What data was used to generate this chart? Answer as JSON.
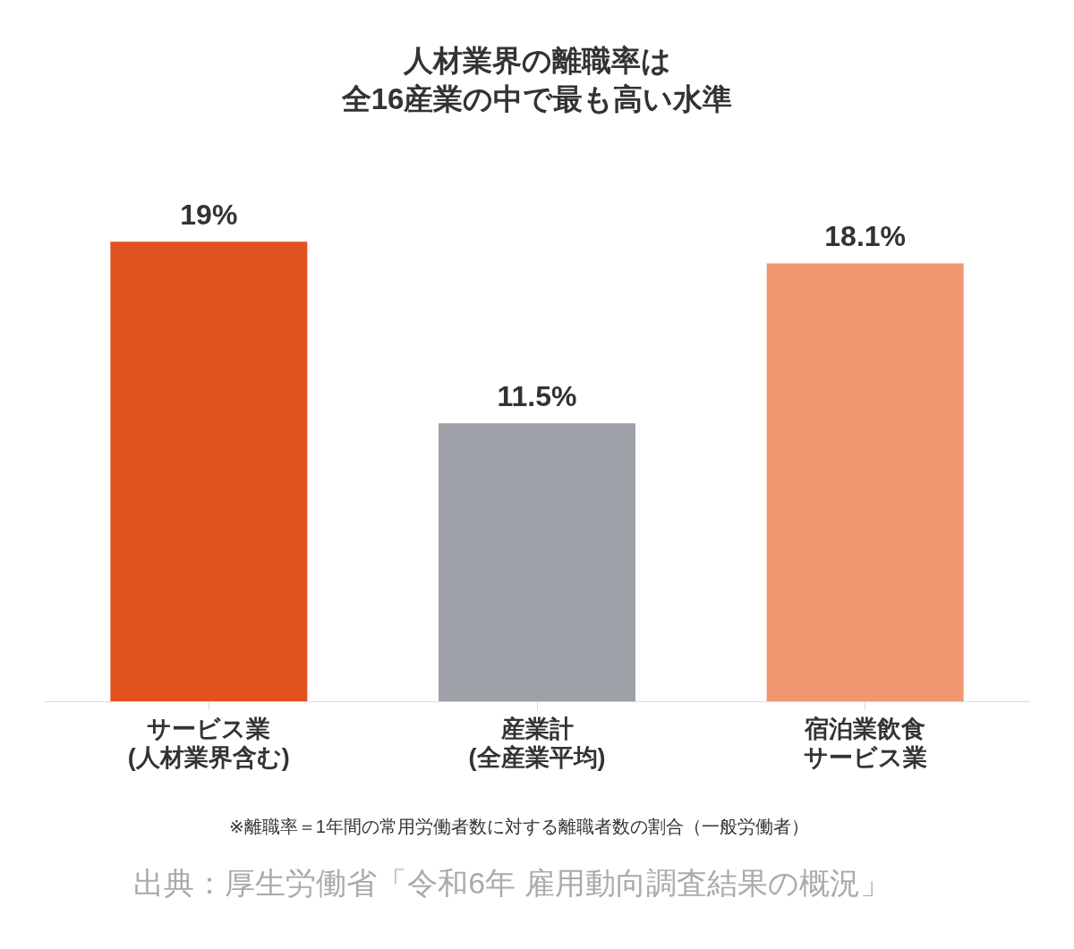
{
  "chart_data": {
    "type": "bar",
    "title": "人材業界の離職率は",
    "subtitle": "全16産業の中で最も高い水準",
    "categories": [
      "サービス業\n(人材業界含む)",
      "産業計\n(全産業平均)",
      "宿泊業飲食サービス業"
    ],
    "values": [
      19,
      11.5,
      18.1
    ],
    "colors": [
      "#e2521f",
      "#9ea1a8",
      "#f09670"
    ],
    "value_labels": [
      "19%",
      "11.5%",
      "18.1%"
    ],
    "grid": false,
    "legend": false,
    "annotations": [
      "※離職率＝1年間の常用労働者数に対する離職者数の割合（一般労働者）",
      "出典：厚生労働省「令和6年 雇用動向調査結果の概況」"
    ]
  }
}
